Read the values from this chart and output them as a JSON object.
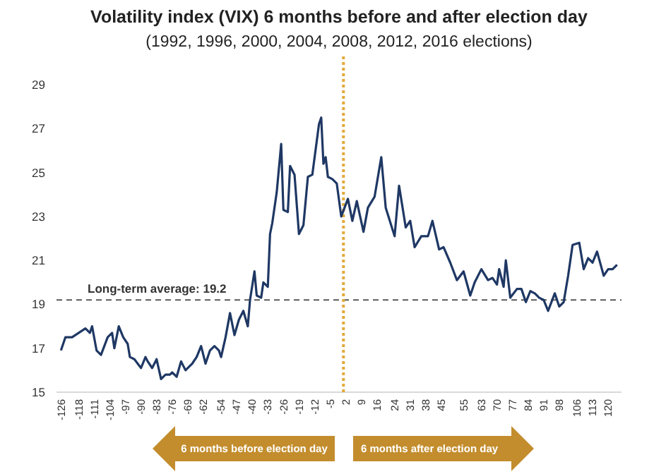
{
  "chart_data": {
    "type": "line",
    "title": "Volatility index (VIX) 6 months before and after election day",
    "subtitle": "(1992, 1996, 2000, 2004, 2008, 2012, 2016 elections)",
    "x": [
      -126,
      -124,
      -121,
      -118,
      -115,
      -113,
      -112,
      -110,
      -108,
      -105,
      -103,
      -102,
      -100,
      -98,
      -96,
      -95,
      -93,
      -90,
      -88,
      -87,
      -85,
      -83,
      -81,
      -79,
      -77,
      -76,
      -74,
      -72,
      -70,
      -68,
      -67,
      -65,
      -63,
      -61,
      -59,
      -57,
      -55,
      -54,
      -52,
      -50,
      -48,
      -46,
      -44,
      -42,
      -41,
      -39,
      -38,
      -36,
      -35,
      -33,
      -32,
      -31,
      -29,
      -27,
      -26,
      -24,
      -23,
      -21,
      -19,
      -17,
      -15,
      -13,
      -10,
      -9,
      -8,
      -7,
      -6,
      -4,
      -2,
      0,
      3,
      5,
      7,
      10,
      12,
      15,
      18,
      20,
      24,
      26,
      29,
      31,
      33,
      36,
      39,
      41,
      44,
      46,
      49,
      52,
      55,
      58,
      60,
      63,
      66,
      68,
      70,
      71,
      73,
      74,
      76,
      79,
      81,
      83,
      85,
      87,
      89,
      91,
      93,
      96,
      98,
      100,
      102,
      104,
      107,
      109,
      111,
      113,
      115,
      118,
      120,
      122,
      124
    ],
    "series": [
      {
        "color": "#1f3864",
        "values": [
          16.9,
          17.5,
          17.5,
          17.7,
          17.9,
          17.7,
          18.0,
          16.9,
          16.7,
          17.5,
          17.7,
          17.0,
          18.0,
          17.5,
          17.2,
          16.6,
          16.5,
          16.1,
          16.6,
          16.4,
          16.1,
          16.5,
          15.6,
          15.8,
          15.8,
          15.9,
          15.7,
          16.4,
          16.0,
          16.2,
          16.3,
          16.6,
          17.1,
          16.3,
          16.9,
          17.1,
          16.9,
          16.6,
          17.5,
          18.6,
          17.6,
          18.3,
          18.7,
          18.0,
          19.2,
          20.5,
          19.4,
          19.3,
          20.0,
          19.8,
          22.2,
          22.7,
          24.1,
          26.3,
          23.3,
          23.2,
          25.3,
          24.9,
          22.2,
          22.6,
          24.8,
          24.9,
          27.2,
          27.5,
          25.4,
          25.7,
          24.8,
          24.7,
          24.5,
          23.0,
          23.8,
          22.8,
          23.7,
          22.3,
          23.4,
          23.9,
          25.7,
          23.4,
          22.1,
          24.4,
          22.5,
          22.8,
          21.6,
          22.1,
          22.1,
          22.8,
          21.5,
          21.6,
          20.9,
          20.1,
          20.5,
          19.4,
          20.0,
          20.6,
          20.1,
          20.2,
          19.9,
          20.6,
          19.8,
          21.0,
          19.3,
          19.7,
          19.7,
          19.1,
          19.6,
          19.5,
          19.3,
          19.2,
          18.7,
          19.5,
          18.9,
          19.1,
          20.3,
          21.7,
          21.8,
          20.6,
          21.1,
          20.9,
          21.4,
          20.3,
          20.6,
          20.6,
          20.8
        ]
      }
    ],
    "xlim": [
      -128,
      126
    ],
    "xticks": [
      -126,
      -118,
      -111,
      -104,
      -97,
      -90,
      -83,
      -76,
      -69,
      -62,
      -54,
      -47,
      -40,
      -33,
      -26,
      -19,
      -12,
      -5,
      2,
      9,
      16,
      24,
      31,
      38,
      45,
      55,
      63,
      70,
      77,
      84,
      91,
      98,
      106,
      113,
      120
    ],
    "ylim": [
      15,
      29
    ],
    "yticks": [
      15,
      17,
      19,
      21,
      23,
      25,
      27,
      29
    ],
    "grid": false,
    "marker": "none",
    "line_style": "solid",
    "ref_lines": [
      {
        "axis": "y",
        "value": 19.2,
        "label": "Long-term average: 19.2",
        "color": "#595959",
        "line_style": "dashed"
      },
      {
        "axis": "x",
        "value": 1,
        "label": null,
        "color": "#e3a93b",
        "line_style": "dotted"
      }
    ],
    "annotations": [
      "6 months before election day",
      "6 months after election day"
    ]
  }
}
